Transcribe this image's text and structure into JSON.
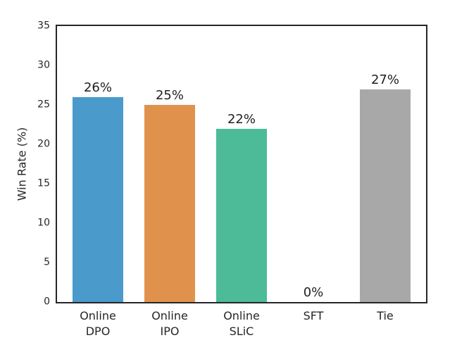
{
  "figure": {
    "background": "#ffffff",
    "spine_color": "#262626",
    "text_color": "#262626"
  },
  "chart_data": {
    "type": "bar",
    "title": "",
    "xlabel": "",
    "ylabel": "Win Rate (%)",
    "categories": [
      "Online\nDPO",
      "Online\nIPO",
      "Online\nSLiC",
      "SFT",
      "Tie"
    ],
    "values": [
      26,
      25,
      22,
      0,
      27
    ],
    "bar_labels": [
      "26%",
      "25%",
      "22%",
      "0%",
      "27%"
    ],
    "colors": [
      "#4A9ACB",
      "#E0924D",
      "#4DBB98",
      "",
      "#A8A8A8"
    ],
    "ylim": [
      0,
      35
    ],
    "yticks": [
      0,
      5,
      10,
      15,
      20,
      25,
      30,
      35
    ],
    "grid": false,
    "legend": false
  }
}
